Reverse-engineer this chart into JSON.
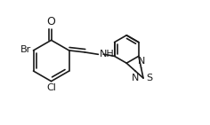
{
  "bg_color": "#ffffff",
  "line_color": "#1a1a1a",
  "line_width": 1.2,
  "font_size": 8.0,
  "figsize": [
    2.36,
    1.41
  ],
  "dpi": 100,
  "xlim": [
    -0.5,
    10.5
  ],
  "ylim": [
    -0.5,
    6.5
  ]
}
